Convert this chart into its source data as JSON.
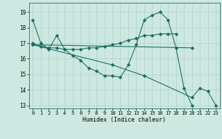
{
  "title": "",
  "xlabel": "Humidex (Indice chaleur)",
  "background_color": "#cce8e0",
  "grid_color": "#b0d0c8",
  "line_color": "#1a6b60",
  "xlim": [
    -0.5,
    23.5
  ],
  "ylim": [
    12.8,
    19.6
  ],
  "yticks": [
    13,
    14,
    15,
    16,
    17,
    18,
    19
  ],
  "xticks": [
    0,
    1,
    2,
    3,
    4,
    5,
    6,
    7,
    8,
    9,
    10,
    11,
    12,
    13,
    14,
    15,
    16,
    17,
    18,
    19,
    20,
    21,
    22,
    23
  ],
  "series": [
    {
      "comment": "line1: starts high ~18.5 at x=0, drops to ~17 at x=1, then to ~16.6, rises to 17.5 at x=3, back to ~16.6 x=4-5, drops further to ~15.3 at x=8-9, then ~14.9 x=10, ~14.8 x=11, then rises sharply to ~16.9 x=13, ~18.5 x=14, peaks ~19 x=15-16, drops ~18.5 x=17, ~16.7 x=18, ~14.1 x=19, ~13 x=20",
      "x": [
        0,
        1,
        2,
        3,
        4,
        5,
        6,
        7,
        8,
        9,
        10,
        11,
        12,
        13,
        14,
        15,
        16,
        17,
        18,
        19,
        20
      ],
      "y": [
        18.5,
        17.0,
        16.6,
        17.5,
        16.6,
        16.2,
        15.9,
        15.4,
        15.2,
        14.9,
        14.9,
        14.8,
        15.6,
        16.9,
        18.5,
        18.8,
        19.0,
        18.5,
        16.7,
        14.1,
        13.0
      ]
    },
    {
      "x": [
        0,
        1,
        2,
        3,
        4,
        5,
        6,
        7,
        8,
        9,
        10,
        11,
        12,
        13,
        14,
        15,
        16,
        17,
        18
      ],
      "y": [
        17.0,
        16.8,
        16.7,
        16.7,
        16.6,
        16.6,
        16.6,
        16.7,
        16.7,
        16.8,
        16.9,
        17.0,
        17.2,
        17.3,
        17.5,
        17.5,
        17.6,
        17.6,
        17.6
      ]
    },
    {
      "x": [
        0,
        20
      ],
      "y": [
        16.9,
        16.7
      ]
    },
    {
      "x": [
        0,
        10,
        14,
        20,
        21,
        22,
        23
      ],
      "y": [
        16.9,
        15.6,
        14.9,
        13.5,
        14.1,
        13.9,
        13.0
      ]
    }
  ]
}
